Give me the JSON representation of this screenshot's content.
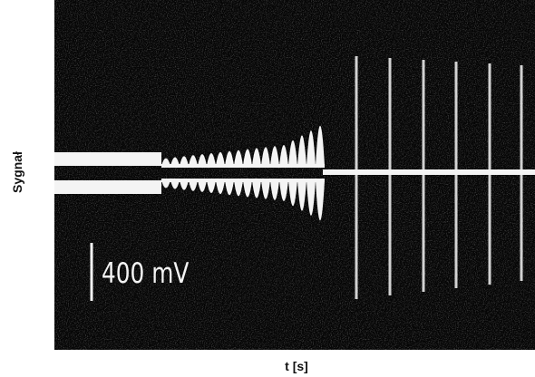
{
  "axes": {
    "y_label": "Sygnał",
    "x_label": "t [s]"
  },
  "scale_bar": {
    "label": "400 mV"
  }
}
